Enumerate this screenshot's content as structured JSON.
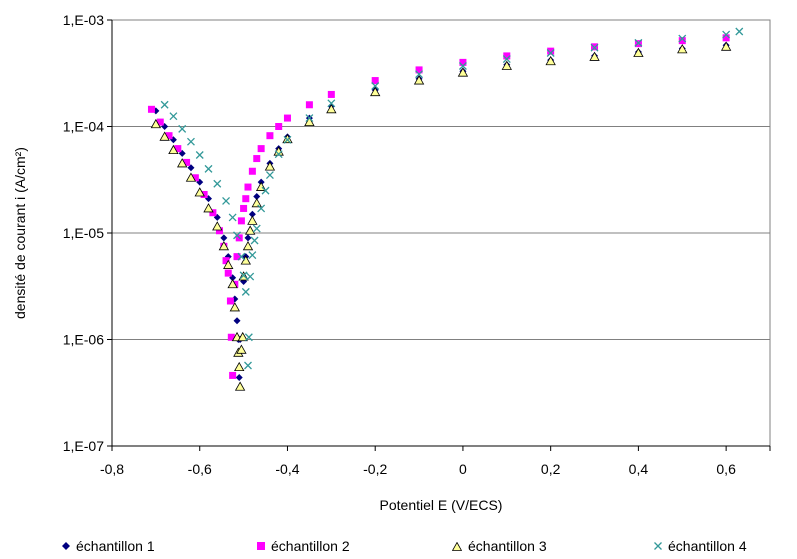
{
  "chart_data": {
    "type": "scatter",
    "xlabel": "Potentiel E (V/ECS)",
    "ylabel": "densité de courant i (A/cm²)",
    "y_scale": "log",
    "xlim": [
      -0.8,
      0.7
    ],
    "ylim": [
      1e-07,
      0.001
    ],
    "x_ticks": [
      -0.8,
      -0.6,
      -0.4,
      -0.2,
      0,
      0.2,
      0.4,
      0.6
    ],
    "x_tick_labels": [
      "-0,8",
      "-0,6",
      "-0,4",
      "-0,2",
      "0",
      "0,2",
      "0,4",
      "0,6"
    ],
    "y_ticks": [
      1e-07,
      1e-06,
      1e-05,
      0.0001,
      0.001
    ],
    "y_tick_labels": [
      "1,E-07",
      "1,E-06",
      "1,E-05",
      "1,E-04",
      "1,E-03"
    ],
    "grid": "horizontal",
    "legend_position": "bottom",
    "series": [
      {
        "name": "échantillon 1",
        "marker": "diamond",
        "color": "#000080",
        "x": [
          -0.7,
          -0.68,
          -0.66,
          -0.64,
          -0.62,
          -0.6,
          -0.58,
          -0.56,
          -0.545,
          -0.535,
          -0.525,
          -0.52,
          -0.515,
          -0.512,
          -0.51,
          -0.508,
          -0.5,
          -0.495,
          -0.49,
          -0.48,
          -0.47,
          -0.46,
          -0.44,
          -0.42,
          -0.4,
          -0.35,
          -0.3,
          -0.2,
          -0.1,
          0,
          0.1,
          0.2,
          0.3,
          0.4,
          0.5,
          0.6
        ],
        "y": [
          0.00014,
          0.0001,
          7.5e-05,
          5.6e-05,
          4.1e-05,
          3e-05,
          2.1e-05,
          1.4e-05,
          9e-06,
          6e-06,
          3.8e-06,
          2.4e-06,
          1.5e-06,
          1e-06,
          4.4e-07,
          1e-06,
          3.5e-06,
          6e-06,
          9e-06,
          1.5e-05,
          2.2e-05,
          3e-05,
          4.5e-05,
          6.2e-05,
          8e-05,
          0.00012,
          0.000155,
          0.00022,
          0.00028,
          0.00033,
          0.00038,
          0.00042,
          0.00046,
          0.0005,
          0.00054,
          0.00058
        ]
      },
      {
        "name": "échantillon 2",
        "marker": "square",
        "color": "#ff00ff",
        "x": [
          -0.71,
          -0.69,
          -0.67,
          -0.65,
          -0.63,
          -0.61,
          -0.59,
          -0.57,
          -0.555,
          -0.545,
          -0.54,
          -0.535,
          -0.53,
          -0.528,
          -0.525,
          -0.52,
          -0.515,
          -0.51,
          -0.505,
          -0.5,
          -0.495,
          -0.49,
          -0.48,
          -0.47,
          -0.46,
          -0.44,
          -0.42,
          -0.4,
          -0.35,
          -0.3,
          -0.2,
          -0.1,
          0,
          0.1,
          0.2,
          0.3,
          0.4,
          0.5,
          0.6
        ],
        "y": [
          0.000145,
          0.00011,
          8.2e-05,
          6.2e-05,
          4.6e-05,
          3.3e-05,
          2.3e-05,
          1.55e-05,
          1.05e-05,
          7.5e-06,
          5.5e-06,
          4.2e-06,
          2.3e-06,
          1.05e-06,
          4.6e-07,
          3.3e-06,
          6e-06,
          9e-06,
          1.3e-05,
          1.7e-05,
          2.1e-05,
          2.7e-05,
          3.8e-05,
          5e-05,
          6.2e-05,
          8.2e-05,
          0.0001,
          0.00012,
          0.00016,
          0.0002,
          0.00027,
          0.00034,
          0.0004,
          0.00046,
          0.00051,
          0.00056,
          0.0006,
          0.00064,
          0.00068
        ]
      },
      {
        "name": "échantillon 3",
        "marker": "triangle",
        "color": "#ffff99",
        "x": [
          -0.7,
          -0.68,
          -0.66,
          -0.64,
          -0.62,
          -0.6,
          -0.58,
          -0.56,
          -0.545,
          -0.535,
          -0.525,
          -0.52,
          -0.515,
          -0.512,
          -0.51,
          -0.508,
          -0.505,
          -0.502,
          -0.5,
          -0.495,
          -0.49,
          -0.485,
          -0.48,
          -0.47,
          -0.46,
          -0.44,
          -0.42,
          -0.4,
          -0.35,
          -0.3,
          -0.2,
          -0.1,
          0,
          0.1,
          0.2,
          0.3,
          0.4,
          0.5,
          0.6
        ],
        "y": [
          0.000105,
          8e-05,
          6e-05,
          4.5e-05,
          3.3e-05,
          2.4e-05,
          1.7e-05,
          1.15e-05,
          7.5e-06,
          5e-06,
          3.3e-06,
          2e-06,
          1.05e-06,
          7.5e-07,
          5.5e-07,
          3.6e-07,
          8e-07,
          1.05e-06,
          3.9e-06,
          5.5e-06,
          7.5e-06,
          1.05e-05,
          1.3e-05,
          1.9e-05,
          2.7e-05,
          4.2e-05,
          5.8e-05,
          7.6e-05,
          0.00011,
          0.000145,
          0.00021,
          0.00027,
          0.00032,
          0.00037,
          0.00041,
          0.00045,
          0.00049,
          0.00053,
          0.00056
        ]
      },
      {
        "name": "échantillon 4",
        "marker": "x",
        "color": "#339999",
        "x": [
          -0.68,
          -0.66,
          -0.64,
          -0.62,
          -0.6,
          -0.58,
          -0.56,
          -0.54,
          -0.525,
          -0.515,
          -0.505,
          -0.5,
          -0.495,
          -0.49,
          -0.488,
          -0.485,
          -0.48,
          -0.475,
          -0.47,
          -0.46,
          -0.45,
          -0.44,
          -0.42,
          -0.4,
          -0.35,
          -0.3,
          -0.2,
          -0.1,
          0,
          0.1,
          0.2,
          0.3,
          0.4,
          0.5,
          0.6,
          0.63
        ],
        "y": [
          0.00016,
          0.000125,
          9.5e-05,
          7.2e-05,
          5.4e-05,
          4e-05,
          2.9e-05,
          2e-05,
          1.4e-05,
          9.5e-06,
          6e-06,
          4e-06,
          2.8e-06,
          5.7e-07,
          1.05e-06,
          3.9e-06,
          6.2e-06,
          8.5e-06,
          1.1e-05,
          1.7e-05,
          2.5e-05,
          3.5e-05,
          5.5e-05,
          7.5e-05,
          0.00012,
          0.000165,
          0.00024,
          0.00031,
          0.00037,
          0.00043,
          0.00049,
          0.00055,
          0.00061,
          0.00067,
          0.00073,
          0.00078
        ]
      }
    ]
  }
}
